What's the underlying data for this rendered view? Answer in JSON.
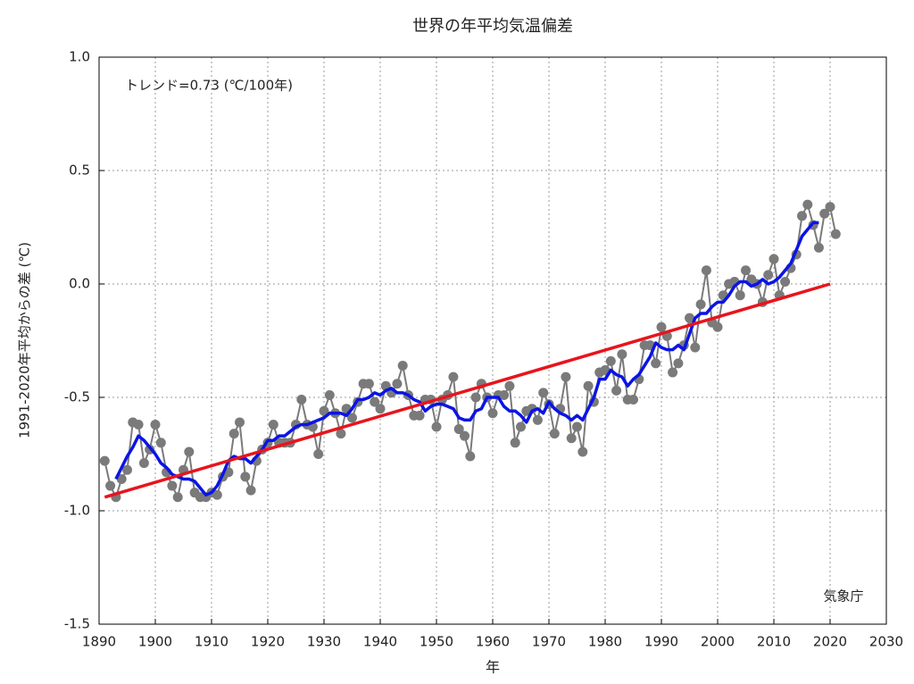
{
  "chart_data": {
    "type": "line",
    "title": "世界の年平均気温偏差",
    "annotation": "トレンド=0.73 (℃/100年)",
    "source": "気象庁",
    "x_label": "年",
    "y_label": "1991-2020年平均からの差 (℃)",
    "xlim": [
      1890,
      2030
    ],
    "xticks": [
      1890,
      1900,
      1910,
      1920,
      1930,
      1940,
      1950,
      1960,
      1970,
      1980,
      1990,
      2000,
      2010,
      2020,
      2030
    ],
    "ylim": [
      -1.5,
      1.0
    ],
    "yticks": [
      {
        "value": -1.5,
        "label": "-1.5"
      },
      {
        "value": -1.0,
        "label": "-1.0"
      },
      {
        "value": -0.5,
        "label": "-0.5"
      },
      {
        "value": 0,
        "label": "0.0"
      },
      {
        "value": 0.5,
        "label": "0.5"
      },
      {
        "value": 1.0,
        "label": "1.0"
      }
    ],
    "grid": true,
    "series": [
      {
        "color": "#7a7a7a",
        "markers": true,
        "x": [
          1891,
          1892,
          1893,
          1894,
          1895,
          1896,
          1897,
          1898,
          1899,
          1900,
          1901,
          1902,
          1903,
          1904,
          1905,
          1906,
          1907,
          1908,
          1909,
          1910,
          1911,
          1912,
          1913,
          1914,
          1915,
          1916,
          1917,
          1918,
          1919,
          1920,
          1921,
          1922,
          1923,
          1924,
          1925,
          1926,
          1927,
          1928,
          1929,
          1930,
          1931,
          1932,
          1933,
          1934,
          1935,
          1936,
          1937,
          1938,
          1939,
          1940,
          1941,
          1942,
          1943,
          1944,
          1945,
          1946,
          1947,
          1948,
          1949,
          1950,
          1951,
          1952,
          1953,
          1954,
          1955,
          1956,
          1957,
          1958,
          1959,
          1960,
          1961,
          1962,
          1963,
          1964,
          1965,
          1966,
          1967,
          1968,
          1969,
          1970,
          1971,
          1972,
          1973,
          1974,
          1975,
          1976,
          1977,
          1978,
          1979,
          1980,
          1981,
          1982,
          1983,
          1984,
          1985,
          1986,
          1987,
          1988,
          1989,
          1990,
          1991,
          1992,
          1993,
          1994,
          1995,
          1996,
          1997,
          1998,
          1999,
          2000,
          2001,
          2002,
          2003,
          2004,
          2005,
          2006,
          2007,
          2008,
          2009,
          2010,
          2011,
          2012,
          2013,
          2014,
          2015,
          2016,
          2017,
          2018,
          2019,
          2020,
          2021
        ],
        "values": [
          -0.78,
          -0.89,
          -0.94,
          -0.86,
          -0.82,
          -0.61,
          -0.62,
          -0.79,
          -0.73,
          -0.62,
          -0.7,
          -0.83,
          -0.89,
          -0.94,
          -0.82,
          -0.74,
          -0.92,
          -0.94,
          -0.94,
          -0.92,
          -0.93,
          -0.85,
          -0.83,
          -0.66,
          -0.61,
          -0.85,
          -0.91,
          -0.78,
          -0.73,
          -0.7,
          -0.62,
          -0.7,
          -0.7,
          -0.7,
          -0.62,
          -0.51,
          -0.62,
          -0.63,
          -0.75,
          -0.56,
          -0.49,
          -0.57,
          -0.66,
          -0.55,
          -0.59,
          -0.52,
          -0.44,
          -0.44,
          -0.52,
          -0.55,
          -0.45,
          -0.48,
          -0.44,
          -0.36,
          -0.49,
          -0.58,
          -0.58,
          -0.51,
          -0.51,
          -0.63,
          -0.51,
          -0.49,
          -0.41,
          -0.64,
          -0.67,
          -0.76,
          -0.5,
          -0.44,
          -0.5,
          -0.57,
          -0.49,
          -0.49,
          -0.45,
          -0.7,
          -0.63,
          -0.56,
          -0.55,
          -0.6,
          -0.48,
          -0.53,
          -0.66,
          -0.55,
          -0.41,
          -0.68,
          -0.63,
          -0.74,
          -0.45,
          -0.52,
          -0.39,
          -0.38,
          -0.34,
          -0.47,
          -0.31,
          -0.51,
          -0.51,
          -0.42,
          -0.27,
          -0.27,
          -0.35,
          -0.19,
          -0.23,
          -0.39,
          -0.35,
          -0.27,
          -0.15,
          -0.28,
          -0.09,
          0.06,
          -0.17,
          -0.19,
          -0.05,
          0,
          0.01,
          -0.05,
          0.06,
          0.02,
          0,
          -0.08,
          0.04,
          0.11,
          -0.05,
          0.01,
          0.07,
          0.13,
          0.3,
          0.35,
          0.26,
          0.16,
          0.31,
          0.34,
          0.22
        ]
      },
      {
        "color": "#0a14e6",
        "markers": false,
        "x": [
          1893,
          1894,
          1895,
          1896,
          1897,
          1898,
          1899,
          1900,
          1901,
          1902,
          1903,
          1904,
          1905,
          1906,
          1907,
          1908,
          1909,
          1910,
          1911,
          1912,
          1913,
          1914,
          1915,
          1916,
          1917,
          1918,
          1919,
          1920,
          1921,
          1922,
          1923,
          1924,
          1925,
          1926,
          1927,
          1928,
          1929,
          1930,
          1931,
          1932,
          1933,
          1934,
          1935,
          1936,
          1937,
          1938,
          1939,
          1940,
          1941,
          1942,
          1943,
          1944,
          1945,
          1946,
          1947,
          1948,
          1949,
          1950,
          1951,
          1952,
          1953,
          1954,
          1955,
          1956,
          1957,
          1958,
          1959,
          1960,
          1961,
          1962,
          1963,
          1964,
          1965,
          1966,
          1967,
          1968,
          1969,
          1970,
          1971,
          1972,
          1973,
          1974,
          1975,
          1976,
          1977,
          1978,
          1979,
          1980,
          1981,
          1982,
          1983,
          1984,
          1985,
          1986,
          1987,
          1988,
          1989,
          1990,
          1991,
          1992,
          1993,
          1994,
          1995,
          1996,
          1997,
          1998,
          1999,
          2000,
          2001,
          2002,
          2003,
          2004,
          2005,
          2006,
          2007,
          2008,
          2009,
          2010,
          2011,
          2012,
          2013,
          2014,
          2015,
          2016,
          2017,
          2018
        ],
        "values": [
          -0.86,
          -0.81,
          -0.76,
          -0.72,
          -0.67,
          -0.69,
          -0.72,
          -0.75,
          -0.79,
          -0.81,
          -0.84,
          -0.85,
          -0.86,
          -0.86,
          -0.87,
          -0.9,
          -0.93,
          -0.92,
          -0.89,
          -0.84,
          -0.78,
          -0.76,
          -0.77,
          -0.77,
          -0.79,
          -0.76,
          -0.73,
          -0.69,
          -0.69,
          -0.67,
          -0.67,
          -0.65,
          -0.63,
          -0.62,
          -0.62,
          -0.61,
          -0.6,
          -0.59,
          -0.57,
          -0.57,
          -0.57,
          -0.58,
          -0.55,
          -0.51,
          -0.51,
          -0.5,
          -0.48,
          -0.49,
          -0.47,
          -0.46,
          -0.48,
          -0.48,
          -0.49,
          -0.51,
          -0.52,
          -0.56,
          -0.54,
          -0.53,
          -0.53,
          -0.54,
          -0.55,
          -0.59,
          -0.6,
          -0.6,
          -0.56,
          -0.55,
          -0.5,
          -0.5,
          -0.5,
          -0.54,
          -0.56,
          -0.56,
          -0.58,
          -0.61,
          -0.56,
          -0.55,
          -0.57,
          -0.52,
          -0.55,
          -0.57,
          -0.58,
          -0.6,
          -0.58,
          -0.6,
          -0.55,
          -0.5,
          -0.42,
          -0.42,
          -0.38,
          -0.4,
          -0.41,
          -0.45,
          -0.42,
          -0.4,
          -0.36,
          -0.32,
          -0.26,
          -0.28,
          -0.29,
          -0.29,
          -0.27,
          -0.29,
          -0.22,
          -0.15,
          -0.13,
          -0.13,
          -0.1,
          -0.08,
          -0.08,
          -0.05,
          -0.01,
          0.01,
          0.01,
          -0.01,
          0,
          0.02,
          0,
          0.01,
          0.03,
          0.06,
          0.09,
          0.15,
          0.21,
          0.24,
          0.27,
          0.27
        ]
      },
      {
        "color": "#e8141c",
        "markers": false,
        "x": [
          1891,
          2020
        ],
        "values": [
          -0.94,
          0
        ]
      }
    ]
  }
}
